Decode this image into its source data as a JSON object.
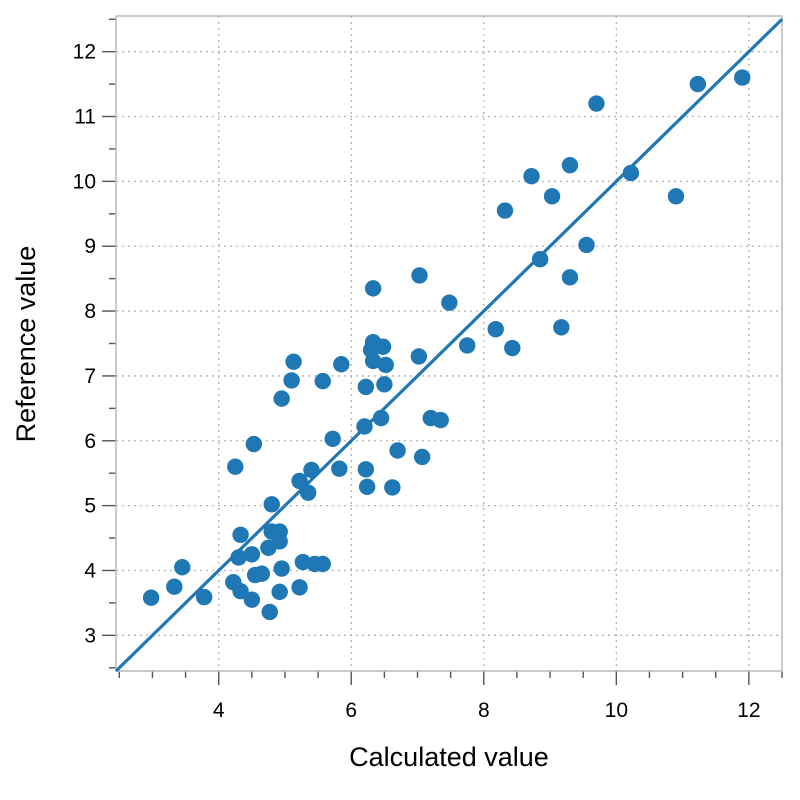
{
  "chart_data": {
    "type": "scatter",
    "xlabel": "Calculated value",
    "ylabel": "Reference value",
    "xlim": [
      2.45,
      12.5
    ],
    "ylim": [
      2.45,
      12.55
    ],
    "x_ticks": [
      4,
      6,
      8,
      10,
      12
    ],
    "y_ticks": [
      3,
      4,
      5,
      6,
      7,
      8,
      9,
      10,
      11,
      12
    ],
    "grid": true,
    "colors": {
      "points": "#1f77b4",
      "line": "#1f77b4"
    },
    "reference_line": {
      "label": "",
      "slope": 1,
      "intercept": 0
    },
    "series": [
      {
        "points": [
          [
            2.98,
            3.58
          ],
          [
            3.33,
            3.75
          ],
          [
            3.45,
            4.05
          ],
          [
            3.78,
            3.59
          ],
          [
            4.22,
            3.82
          ],
          [
            4.25,
            5.6
          ],
          [
            4.3,
            4.2
          ],
          [
            4.33,
            3.68
          ],
          [
            4.33,
            4.55
          ],
          [
            4.5,
            4.25
          ],
          [
            4.5,
            3.55
          ],
          [
            4.53,
            5.95
          ],
          [
            4.55,
            3.93
          ],
          [
            4.65,
            3.95
          ],
          [
            4.75,
            4.35
          ],
          [
            4.77,
            3.36
          ],
          [
            4.8,
            5.02
          ],
          [
            4.8,
            4.6
          ],
          [
            4.92,
            4.6
          ],
          [
            4.92,
            4.45
          ],
          [
            4.92,
            3.67
          ],
          [
            4.95,
            6.65
          ],
          [
            4.95,
            4.03
          ],
          [
            5.1,
            6.93
          ],
          [
            5.13,
            7.22
          ],
          [
            5.22,
            5.38
          ],
          [
            5.22,
            3.74
          ],
          [
            5.27,
            4.13
          ],
          [
            5.35,
            5.2
          ],
          [
            5.4,
            5.55
          ],
          [
            5.45,
            4.1
          ],
          [
            5.57,
            4.1
          ],
          [
            5.57,
            6.92
          ],
          [
            5.72,
            6.03
          ],
          [
            5.82,
            5.57
          ],
          [
            5.85,
            7.18
          ],
          [
            6.2,
            6.22
          ],
          [
            6.22,
            5.56
          ],
          [
            6.22,
            6.83
          ],
          [
            6.24,
            5.29
          ],
          [
            6.3,
            7.4
          ],
          [
            6.33,
            7.52
          ],
          [
            6.33,
            7.23
          ],
          [
            6.33,
            8.35
          ],
          [
            6.45,
            6.35
          ],
          [
            6.48,
            7.45
          ],
          [
            6.5,
            6.87
          ],
          [
            6.52,
            7.17
          ],
          [
            6.62,
            5.28
          ],
          [
            6.7,
            5.85
          ],
          [
            7.02,
            7.3
          ],
          [
            7.03,
            8.55
          ],
          [
            7.07,
            5.75
          ],
          [
            7.2,
            6.35
          ],
          [
            7.35,
            6.32
          ],
          [
            7.48,
            8.13
          ],
          [
            7.75,
            7.47
          ],
          [
            8.18,
            7.72
          ],
          [
            8.32,
            9.55
          ],
          [
            8.43,
            7.43
          ],
          [
            8.72,
            10.08
          ],
          [
            8.85,
            8.8
          ],
          [
            9.03,
            9.77
          ],
          [
            9.17,
            7.75
          ],
          [
            9.3,
            8.52
          ],
          [
            9.3,
            10.25
          ],
          [
            9.55,
            9.02
          ],
          [
            9.7,
            11.2
          ],
          [
            10.22,
            10.13
          ],
          [
            10.9,
            9.77
          ],
          [
            11.23,
            11.5
          ],
          [
            11.9,
            11.6
          ]
        ]
      }
    ]
  }
}
